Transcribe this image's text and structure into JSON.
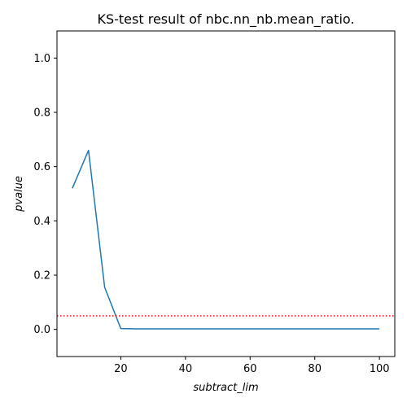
{
  "chart_data": {
    "type": "line",
    "title": "KS-test result of nbc.nn_nb.mean_ratio.",
    "xlabel": "subtract_lim",
    "ylabel": "pvalue",
    "xlim": [
      0.25,
      104.75
    ],
    "ylim": [
      -0.1,
      1.1
    ],
    "xticks": [
      20,
      40,
      60,
      80,
      100
    ],
    "yticks": [
      0.0,
      0.2,
      0.4,
      0.6,
      0.8,
      1.0
    ],
    "xtick_labels": [
      "20",
      "40",
      "60",
      "80",
      "100"
    ],
    "ytick_labels": [
      "0.0",
      "0.2",
      "0.4",
      "0.6",
      "0.8",
      "1.0"
    ],
    "grid": false,
    "series": [
      {
        "x": [
          5,
          10,
          15,
          20,
          25,
          30,
          35,
          40,
          45,
          50,
          55,
          60,
          65,
          70,
          75,
          80,
          85,
          90,
          95,
          100
        ],
        "values": [
          0.52,
          0.66,
          0.155,
          0.003,
          0.002,
          0.002,
          0.002,
          0.002,
          0.002,
          0.002,
          0.002,
          0.002,
          0.002,
          0.002,
          0.002,
          0.002,
          0.002,
          0.002,
          0.002,
          0.002
        ],
        "color": "#1f77b4"
      }
    ],
    "reference_line": {
      "y": 0.05,
      "color": "#ff0000",
      "style": "dotted"
    }
  }
}
